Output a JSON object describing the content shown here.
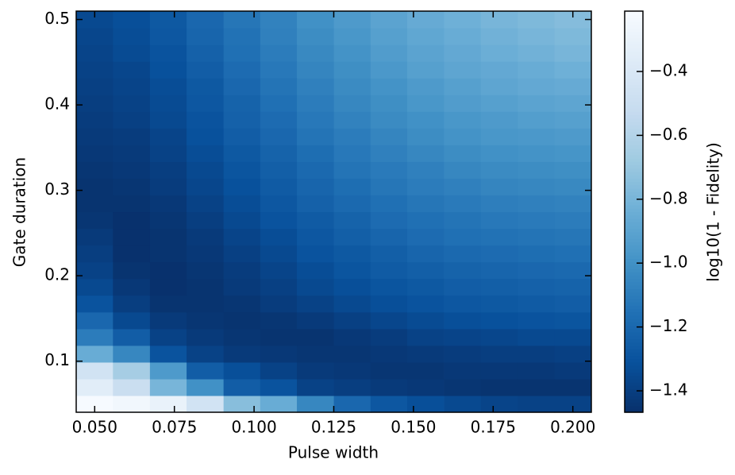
{
  "chart_data": {
    "type": "heatmap",
    "x_label": "Pulse width",
    "y_label": "Gate duration",
    "colorbar_label": "log10(1 - Fidelity)",
    "colormap": "Blues_r",
    "x": [
      0.05,
      0.0615,
      0.0731,
      0.0846,
      0.0962,
      0.1077,
      0.1192,
      0.1308,
      0.1423,
      0.1538,
      0.1654,
      0.1769,
      0.1885,
      0.2
    ],
    "y": [
      0.05,
      0.0696,
      0.0891,
      0.1087,
      0.1283,
      0.1478,
      0.1674,
      0.187,
      0.2065,
      0.2261,
      0.2457,
      0.2652,
      0.2848,
      0.3043,
      0.3239,
      0.3435,
      0.363,
      0.3826,
      0.4022,
      0.4217,
      0.4413,
      0.4609,
      0.4804,
      0.5
    ],
    "values": [
      [
        -0.22,
        -0.25,
        -0.3,
        -0.45,
        -0.75,
        -0.85,
        -1.05,
        -1.2,
        -1.28,
        -1.32,
        -1.35,
        -1.37,
        -1.38,
        -1.38
      ],
      [
        -0.35,
        -0.5,
        -0.8,
        -1.0,
        -1.25,
        -1.3,
        -1.38,
        -1.4,
        -1.42,
        -1.43,
        -1.44,
        -1.45,
        -1.45,
        -1.45
      ],
      [
        -0.45,
        -0.65,
        -0.95,
        -1.25,
        -1.32,
        -1.38,
        -1.42,
        -1.43,
        -1.44,
        -1.44,
        -1.43,
        -1.43,
        -1.43,
        -1.42
      ],
      [
        -0.85,
        -1.05,
        -1.3,
        -1.38,
        -1.42,
        -1.43,
        -1.44,
        -1.44,
        -1.43,
        -1.42,
        -1.41,
        -1.4,
        -1.4,
        -1.39
      ],
      [
        -1.1,
        -1.25,
        -1.38,
        -1.42,
        -1.44,
        -1.45,
        -1.45,
        -1.43,
        -1.41,
        -1.38,
        -1.37,
        -1.36,
        -1.35,
        -1.35
      ],
      [
        -1.2,
        -1.35,
        -1.42,
        -1.44,
        -1.45,
        -1.44,
        -1.42,
        -1.39,
        -1.36,
        -1.34,
        -1.32,
        -1.31,
        -1.3,
        -1.29
      ],
      [
        -1.3,
        -1.4,
        -1.45,
        -1.45,
        -1.44,
        -1.41,
        -1.38,
        -1.35,
        -1.32,
        -1.3,
        -1.28,
        -1.27,
        -1.26,
        -1.25
      ],
      [
        -1.35,
        -1.43,
        -1.46,
        -1.45,
        -1.42,
        -1.39,
        -1.35,
        -1.32,
        -1.29,
        -1.27,
        -1.25,
        -1.24,
        -1.23,
        -1.22
      ],
      [
        -1.38,
        -1.45,
        -1.46,
        -1.44,
        -1.41,
        -1.37,
        -1.33,
        -1.29,
        -1.26,
        -1.24,
        -1.22,
        -1.21,
        -1.2,
        -1.19
      ],
      [
        -1.4,
        -1.46,
        -1.45,
        -1.43,
        -1.39,
        -1.35,
        -1.3,
        -1.27,
        -1.24,
        -1.21,
        -1.19,
        -1.18,
        -1.17,
        -1.16
      ],
      [
        -1.42,
        -1.46,
        -1.45,
        -1.42,
        -1.37,
        -1.33,
        -1.28,
        -1.24,
        -1.21,
        -1.18,
        -1.16,
        -1.15,
        -1.14,
        -1.13
      ],
      [
        -1.44,
        -1.46,
        -1.44,
        -1.4,
        -1.35,
        -1.3,
        -1.26,
        -1.22,
        -1.18,
        -1.16,
        -1.14,
        -1.12,
        -1.11,
        -1.1
      ],
      [
        -1.45,
        -1.45,
        -1.43,
        -1.38,
        -1.33,
        -1.28,
        -1.23,
        -1.19,
        -1.16,
        -1.13,
        -1.11,
        -1.09,
        -1.08,
        -1.07
      ],
      [
        -1.45,
        -1.44,
        -1.41,
        -1.36,
        -1.31,
        -1.26,
        -1.21,
        -1.17,
        -1.13,
        -1.1,
        -1.08,
        -1.06,
        -1.05,
        -1.04
      ],
      [
        -1.44,
        -1.43,
        -1.4,
        -1.35,
        -1.29,
        -1.24,
        -1.19,
        -1.14,
        -1.11,
        -1.08,
        -1.05,
        -1.03,
        -1.02,
        -1.01
      ],
      [
        -1.43,
        -1.42,
        -1.38,
        -1.33,
        -1.27,
        -1.22,
        -1.17,
        -1.12,
        -1.08,
        -1.05,
        -1.02,
        -1.0,
        -0.99,
        -0.98
      ],
      [
        -1.42,
        -1.41,
        -1.37,
        -1.31,
        -1.25,
        -1.2,
        -1.14,
        -1.1,
        -1.06,
        -1.02,
        -0.99,
        -0.97,
        -0.96,
        -0.95
      ],
      [
        -1.41,
        -1.39,
        -1.35,
        -1.3,
        -1.23,
        -1.18,
        -1.12,
        -1.07,
        -1.03,
        -1.0,
        -0.97,
        -0.95,
        -0.93,
        -0.92
      ],
      [
        -1.4,
        -1.38,
        -1.34,
        -1.28,
        -1.22,
        -1.16,
        -1.1,
        -1.05,
        -1.01,
        -0.97,
        -0.94,
        -0.92,
        -0.9,
        -0.89
      ],
      [
        -1.39,
        -1.37,
        -1.33,
        -1.27,
        -1.2,
        -1.14,
        -1.08,
        -1.03,
        -0.99,
        -0.95,
        -0.92,
        -0.89,
        -0.87,
        -0.86
      ],
      [
        -1.38,
        -1.36,
        -1.31,
        -1.25,
        -1.18,
        -1.12,
        -1.06,
        -1.01,
        -0.96,
        -0.92,
        -0.89,
        -0.87,
        -0.85,
        -0.83
      ],
      [
        -1.37,
        -1.34,
        -1.3,
        -1.23,
        -1.16,
        -1.1,
        -1.04,
        -0.99,
        -0.94,
        -0.9,
        -0.87,
        -0.84,
        -0.82,
        -0.8
      ],
      [
        -1.36,
        -1.33,
        -1.28,
        -1.21,
        -1.15,
        -1.08,
        -1.02,
        -0.97,
        -0.92,
        -0.88,
        -0.85,
        -0.82,
        -0.8,
        -0.78
      ],
      [
        -1.35,
        -1.32,
        -1.27,
        -1.2,
        -1.13,
        -1.07,
        -1.0,
        -0.95,
        -0.9,
        -0.86,
        -0.83,
        -0.8,
        -0.78,
        -0.76
      ]
    ],
    "xlim": [
      0.0442,
      0.2058
    ],
    "ylim": [
      0.0402,
      0.5098
    ],
    "xticks": [
      {
        "value": 0.05,
        "label": "0.050"
      },
      {
        "value": 0.075,
        "label": "0.075"
      },
      {
        "value": 0.1,
        "label": "0.100"
      },
      {
        "value": 0.125,
        "label": "0.125"
      },
      {
        "value": 0.15,
        "label": "0.150"
      },
      {
        "value": 0.175,
        "label": "0.175"
      },
      {
        "value": 0.2,
        "label": "0.200"
      }
    ],
    "yticks": [
      0.1,
      0.2,
      0.3,
      0.4,
      0.5
    ],
    "clim": [
      -1.467,
      -0.211
    ],
    "cticks": [
      {
        "value": -0.4,
        "label": "−0.4"
      },
      {
        "value": -0.6,
        "label": "−0.6"
      },
      {
        "value": -0.8,
        "label": "−0.8"
      },
      {
        "value": -1.0,
        "label": "−1.0"
      },
      {
        "value": -1.2,
        "label": "−1.2"
      },
      {
        "value": -1.4,
        "label": "−1.4"
      }
    ]
  }
}
